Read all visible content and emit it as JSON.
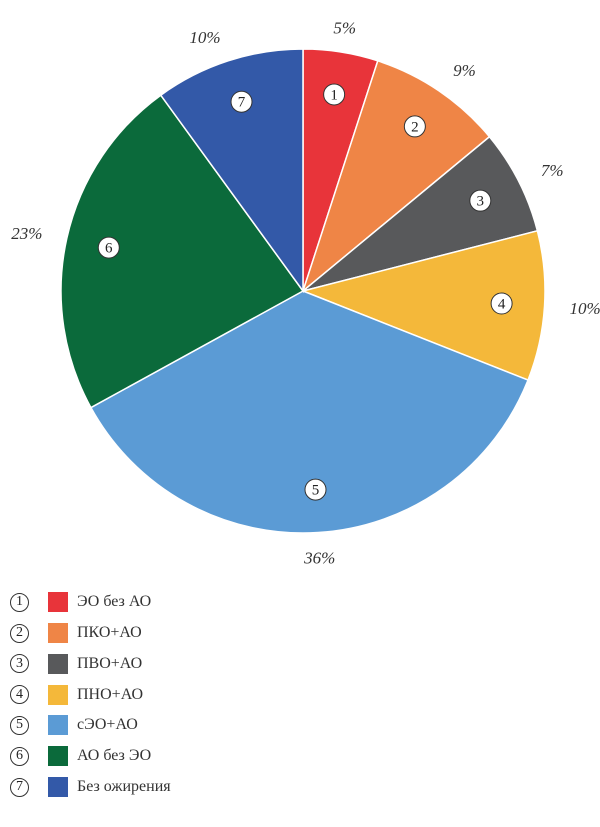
{
  "chart_data": {
    "type": "pie",
    "slices": [
      {
        "marker": "1",
        "label": "ЭО без АО",
        "value": 5,
        "value_label": "5%",
        "color": "#e8343a"
      },
      {
        "marker": "2",
        "label": "ПКО+АО",
        "value": 9,
        "value_label": "9%",
        "color": "#ef8546"
      },
      {
        "marker": "3",
        "label": "ПВО+АО",
        "value": 7,
        "value_label": "7%",
        "color": "#58595b"
      },
      {
        "marker": "4",
        "label": "ПНО+АО",
        "value": 10,
        "value_label": "10%",
        "color": "#f4b83a"
      },
      {
        "marker": "5",
        "label": "сЭО+АО",
        "value": 36,
        "value_label": "36%",
        "color": "#5b9bd5"
      },
      {
        "marker": "6",
        "label": "АО без ЭО",
        "value": 23,
        "value_label": "23%",
        "color": "#0b6a3b"
      },
      {
        "marker": "7",
        "label": "Без ожирения",
        "value": 10,
        "value_label": "10%",
        "color": "#3359a8"
      }
    ],
    "legend_position": "bottom-left",
    "start_angle": "top",
    "direction": "clockwise"
  }
}
